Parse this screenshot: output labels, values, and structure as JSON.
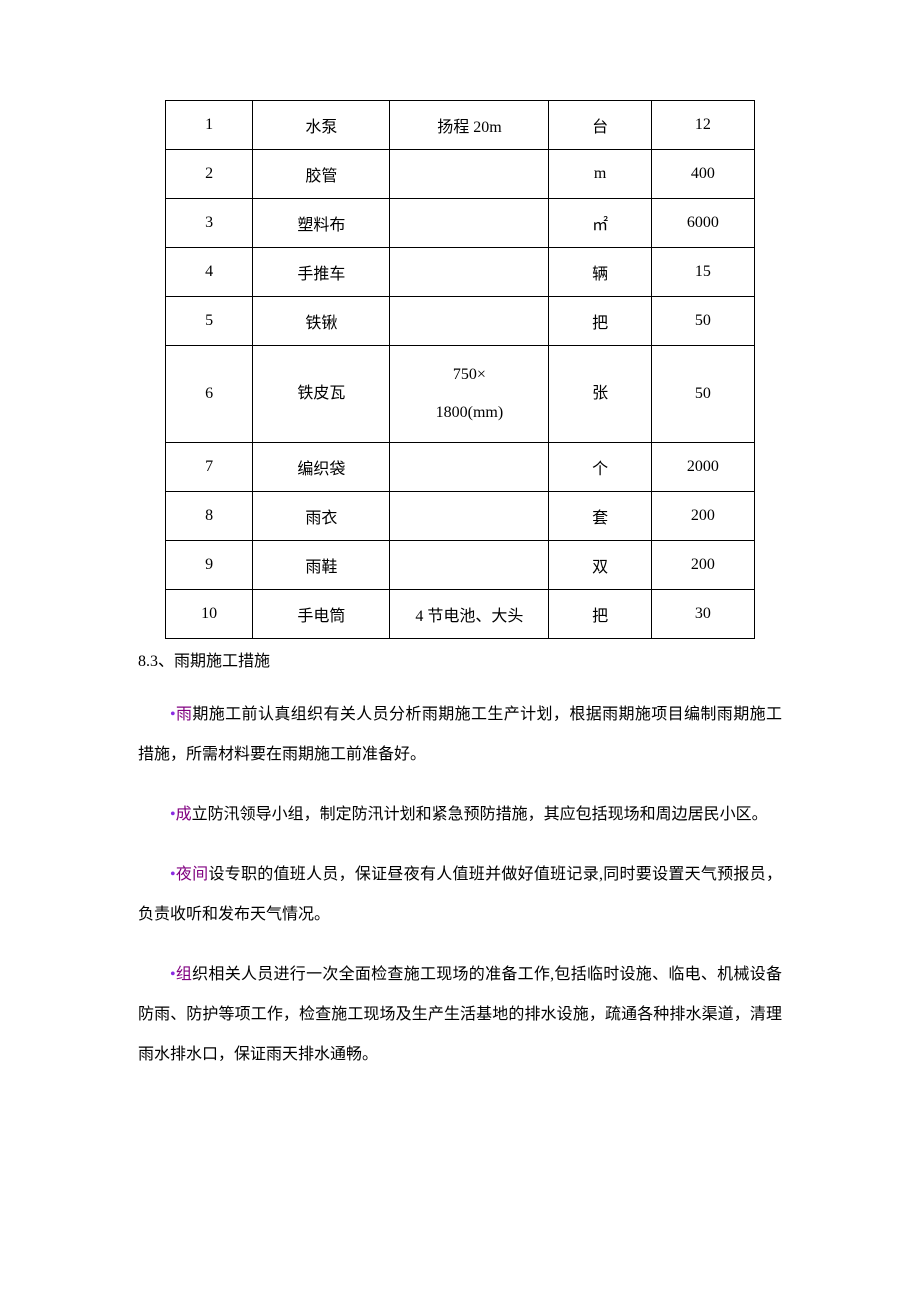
{
  "table": {
    "rows": [
      {
        "c1": "1",
        "c2": "水泵",
        "c3": "扬程 20m",
        "c4": "台",
        "c5": "12"
      },
      {
        "c1": "2",
        "c2": "胶管",
        "c3": "",
        "c4": "m",
        "c5": "400"
      },
      {
        "c1": "3",
        "c2": "塑料布",
        "c3": "",
        "c4": "㎡",
        "c5": "6000"
      },
      {
        "c1": "4",
        "c2": "手推车",
        "c3": "",
        "c4": "辆",
        "c5": "15"
      },
      {
        "c1": "5",
        "c2": "铁锹",
        "c3": "",
        "c4": "把",
        "c5": "50"
      },
      {
        "c1": "6",
        "c2": "铁皮瓦",
        "c3": "750×\n1800(mm)",
        "c4": "张",
        "c5": "50",
        "tall": true
      },
      {
        "c1": "7",
        "c2": "编织袋",
        "c3": "",
        "c4": "个",
        "c5": "2000"
      },
      {
        "c1": "8",
        "c2": "雨衣",
        "c3": "",
        "c4": "套",
        "c5": "200"
      },
      {
        "c1": "9",
        "c2": "雨鞋",
        "c3": "",
        "c4": "双",
        "c5": "200"
      },
      {
        "c1": "10",
        "c2": "手电筒",
        "c3": "4 节电池、大头",
        "c4": "把",
        "c5": "30"
      }
    ]
  },
  "heading": "8.3、雨期施工措施",
  "paragraphs": [
    {
      "bullet": "•",
      "lead": "雨",
      "rest": "期施工前认真组织有关人员分析雨期施工生产计划，根据雨期施项目编制雨期施工措施，所需材料要在雨期施工前准备好。"
    },
    {
      "bullet": "•",
      "lead": "成",
      "rest": "立防汛领导小组，制定防汛计划和紧急预防措施，其应包括现场和周边居民小区。"
    },
    {
      "bullet": "•",
      "lead": "夜间",
      "rest": "设专职的值班人员，保证昼夜有人值班并做好值班记录,同时要设置天气预报员，负责收听和发布天气情况。"
    },
    {
      "bullet": "•",
      "lead": "组",
      "rest": "织相关人员进行一次全面检查施工现场的准备工作,包括临时设施、临电、机械设备防雨、防护等项工作，检查施工现场及生产生活基地的排水设施，疏通各种排水渠道，清理雨水排水口，保证雨天排水通畅。"
    }
  ]
}
